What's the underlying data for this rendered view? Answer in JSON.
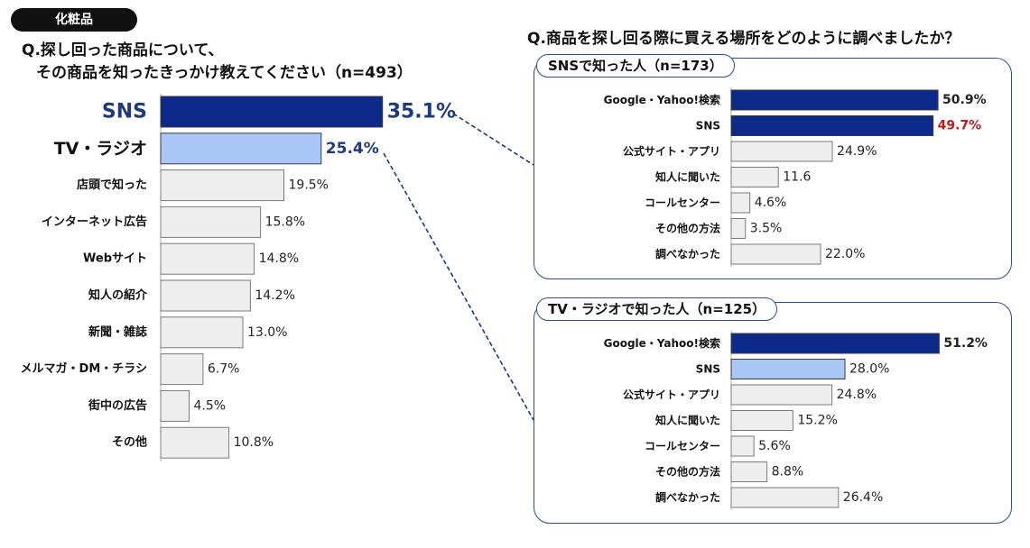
{
  "header": {
    "badge": "化粧品",
    "left_question_line1": "Q.探し回った商品について、",
    "left_question_line2": "その商品を知ったきっかけ教えてください（n=493）",
    "right_question": "Q.商品を探し回る際に買える場所をどのように調べましたか？"
  },
  "colors": {
    "highlight": "#0c2a8a",
    "secondary": "#a9c6f7",
    "neutral": "#eeeeee",
    "label_blue": "#1f3a7a",
    "label_red": "#c0181c",
    "connector": "#1f3a7a"
  },
  "chart_data": [
    {
      "type": "bar",
      "orientation": "horizontal",
      "categories": [
        "SNS",
        "TV・ラジオ",
        "店頭で知った",
        "インターネット広告",
        "Webサイト",
        "知人の紹介",
        "新聞・雑誌",
        "メルマガ・DM・チラシ",
        "街中の広告",
        "その他"
      ],
      "values": [
        35.1,
        25.4,
        19.5,
        15.8,
        14.8,
        14.2,
        13.0,
        6.7,
        4.5,
        10.8
      ],
      "value_labels": [
        "35.1%",
        "25.4%",
        "19.5%",
        "15.8%",
        "14.8%",
        "14.2%",
        "13.0%",
        "6.7%",
        "4.5%",
        "10.8%"
      ],
      "bar_colors": [
        "#0c2a8a",
        "#a9c6f7",
        "#eeeeee",
        "#eeeeee",
        "#eeeeee",
        "#eeeeee",
        "#eeeeee",
        "#eeeeee",
        "#eeeeee",
        "#eeeeee"
      ]
    },
    {
      "type": "bar",
      "orientation": "horizontal",
      "title": "SNSで知った人（n=173）",
      "categories": [
        "Google・Yahoo!検索",
        "SNS",
        "公式サイト・アプリ",
        "知人に聞いた",
        "コールセンター",
        "その他の方法",
        "調べなかった"
      ],
      "values": [
        50.9,
        49.7,
        24.9,
        11.6,
        4.6,
        3.5,
        22.0
      ],
      "value_labels": [
        "50.9%",
        "49.7%",
        "24.9%",
        "11.6",
        "4.6%",
        "3.5%",
        "22.0%"
      ],
      "bar_colors": [
        "#0c2a8a",
        "#0c2a8a",
        "#eeeeee",
        "#eeeeee",
        "#eeeeee",
        "#eeeeee",
        "#eeeeee"
      ]
    },
    {
      "type": "bar",
      "orientation": "horizontal",
      "title": "TV・ラジオで知った人（n=125）",
      "categories": [
        "Google・Yahoo!検索",
        "SNS",
        "公式サイト・アプリ",
        "知人に聞いた",
        "コールセンター",
        "その他の方法",
        "調べなかった"
      ],
      "values": [
        51.2,
        28.0,
        24.8,
        15.2,
        5.6,
        8.8,
        26.4
      ],
      "value_labels": [
        "51.2%",
        "28.0%",
        "24.8%",
        "15.2%",
        "5.6%",
        "8.8%",
        "26.4%"
      ],
      "bar_colors": [
        "#0c2a8a",
        "#a9c6f7",
        "#eeeeee",
        "#eeeeee",
        "#eeeeee",
        "#eeeeee",
        "#eeeeee"
      ]
    }
  ]
}
